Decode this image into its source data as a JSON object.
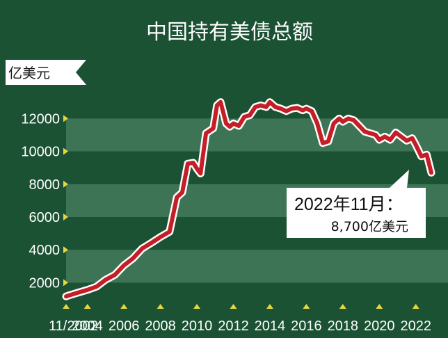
{
  "chart_data": {
    "type": "line",
    "title": "中国持有美债总额",
    "unit_label": "亿美元",
    "ylim": [
      1000,
      13500
    ],
    "y_ticks": [
      2000,
      4000,
      6000,
      8000,
      10000,
      12000
    ],
    "x_ticks": [
      2002.83,
      2004,
      2006,
      2008,
      2010,
      2012,
      2014,
      2016,
      2018,
      2020,
      2022
    ],
    "x_tick_labels": [
      "11/2002",
      "2004",
      "2006",
      "2008",
      "2010",
      "2012",
      "2014",
      "2016",
      "2018",
      "2020",
      "2022"
    ],
    "annotation": {
      "date": "2022年11月：",
      "value": "8,700亿美元"
    },
    "colors": {
      "background": "#1b5234",
      "band": "#3d7456",
      "line": "#c41e26",
      "outline": "#ffffff",
      "marker": "#e6d83c"
    },
    "x": [
      2002.83,
      2003.0,
      2003.5,
      2004.0,
      2004.5,
      2005.0,
      2005.5,
      2006.0,
      2006.5,
      2007.0,
      2007.5,
      2008.0,
      2008.5,
      2008.9,
      2009.2,
      2009.5,
      2009.8,
      2010.0,
      2010.2,
      2010.5,
      2010.9,
      2011.1,
      2011.3,
      2011.6,
      2011.8,
      2012.0,
      2012.3,
      2012.6,
      2012.9,
      2013.2,
      2013.5,
      2013.8,
      2014.0,
      2014.3,
      2014.6,
      2014.9,
      2015.2,
      2015.5,
      2015.8,
      2016.0,
      2016.3,
      2016.6,
      2016.9,
      2017.2,
      2017.5,
      2017.8,
      2018.0,
      2018.3,
      2018.6,
      2018.9,
      2019.2,
      2019.5,
      2019.8,
      2020.0,
      2020.3,
      2020.6,
      2020.9,
      2021.2,
      2021.5,
      2021.8,
      2022.0,
      2022.3,
      2022.6,
      2022.85
    ],
    "values": [
      1160,
      1230,
      1400,
      1560,
      1760,
      2180,
      2470,
      3050,
      3480,
      4080,
      4420,
      4780,
      5100,
      7200,
      7500,
      9250,
      9300,
      8950,
      8650,
      11100,
      11400,
      12800,
      13000,
      11700,
      11500,
      11700,
      11550,
      12100,
      12200,
      12700,
      12800,
      12700,
      13000,
      12700,
      12600,
      12450,
      12600,
      12650,
      12500,
      12600,
      12450,
      11700,
      10500,
      10600,
      11700,
      12000,
      11800,
      12000,
      11900,
      11550,
      11200,
      11100,
      11000,
      10700,
      10900,
      10700,
      11150,
      10900,
      10650,
      10800,
      10400,
      9700,
      9800,
      8700
    ]
  }
}
